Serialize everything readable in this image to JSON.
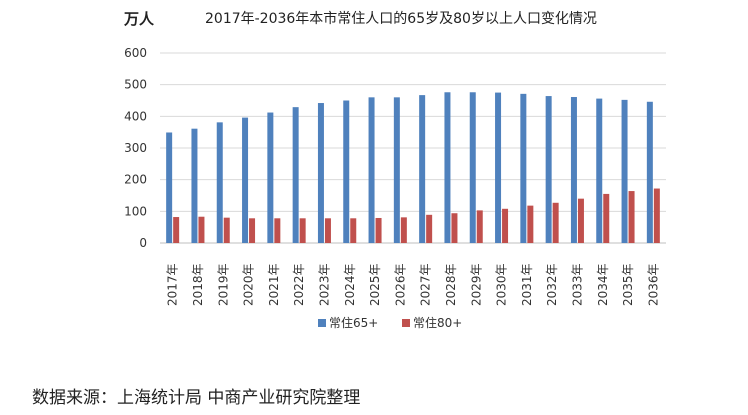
{
  "chart_data": {
    "type": "bar",
    "title": "2017年-2036年本市常住人口的65岁及80岁以上人口变化情况",
    "unit_label": "万人",
    "categories": [
      "2017年",
      "2018年",
      "2019年",
      "2020年",
      "2021年",
      "2022年",
      "2023年",
      "2024年",
      "2025年",
      "2026年",
      "2027年",
      "2028年",
      "2029年",
      "2030年",
      "2031年",
      "2032年",
      "2033年",
      "2034年",
      "2035年",
      "2036年"
    ],
    "series": [
      {
        "name": "常住65+",
        "color": "#4f81bd",
        "values": [
          349,
          361,
          381,
          396,
          412,
          429,
          442,
          450,
          460,
          460,
          467,
          476,
          476,
          475,
          471,
          464,
          461,
          456,
          452,
          446
        ]
      },
      {
        "name": "常住80+",
        "color": "#c0504d",
        "values": [
          82,
          83,
          80,
          78,
          78,
          78,
          78,
          78,
          79,
          81,
          89,
          94,
          103,
          108,
          118,
          127,
          140,
          155,
          164,
          172
        ]
      }
    ],
    "yticks": [
      0,
      100,
      200,
      300,
      400,
      500,
      600
    ],
    "ylim": [
      0,
      600
    ],
    "grid": true,
    "legend": "bottom"
  },
  "footer": {
    "source": "数据来源：上海统计局 中商产业研究院整理"
  }
}
